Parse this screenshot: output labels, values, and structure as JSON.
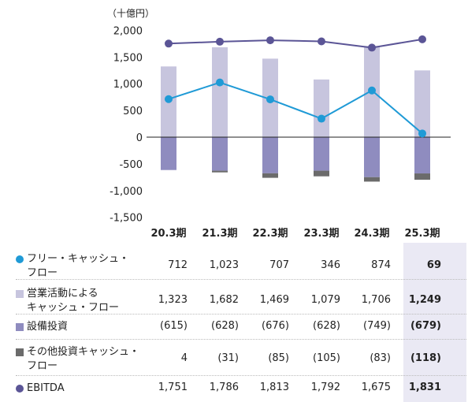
{
  "chart_data": {
    "type": "bar",
    "unit_label": "（十億円）",
    "categories": [
      "20.3期",
      "21.3期",
      "22.3期",
      "23.3期",
      "24.3期",
      "25.3期"
    ],
    "ylim": [
      -1500,
      2000
    ],
    "yticks": [
      "2,000",
      "1,500",
      "1,000",
      "500",
      "0",
      "-500",
      "-1,000",
      "-1,500"
    ],
    "ytick_values": [
      2000,
      1500,
      1000,
      500,
      0,
      -500,
      -1000,
      -1500
    ],
    "grid": false,
    "highlight_index": 5,
    "series": [
      {
        "name": "フリー・キャッシュ・\nフロー",
        "type": "line",
        "color": "#1f9ad6",
        "values": [
          712,
          1023,
          707,
          346,
          874,
          69
        ],
        "labels": [
          "712",
          "1,023",
          "707",
          "346",
          "874",
          "69"
        ]
      },
      {
        "name": "営業活動による\nキャッシュ・フロー",
        "type": "bar",
        "color": "#c7c5de",
        "values": [
          1323,
          1682,
          1469,
          1079,
          1706,
          1249
        ],
        "labels": [
          "1,323",
          "1,682",
          "1,469",
          "1,079",
          "1,706",
          "1,249"
        ]
      },
      {
        "name": "設備投資",
        "type": "bar",
        "color": "#8f8cbf",
        "values": [
          -615,
          -628,
          -676,
          -628,
          -749,
          -679
        ],
        "labels": [
          "(615)",
          "(628)",
          "(676)",
          "(628)",
          "(749)",
          "(679)"
        ]
      },
      {
        "name": "その他投資キャッシュ・\nフロー",
        "type": "bar",
        "color": "#6b6b6b",
        "values": [
          4,
          -31,
          -85,
          -105,
          -83,
          -118
        ],
        "labels": [
          "4",
          "(31)",
          "(85)",
          "(105)",
          "(83)",
          "(118)"
        ]
      },
      {
        "name": "EBITDA",
        "type": "line",
        "color": "#5b5596",
        "values": [
          1751,
          1786,
          1813,
          1792,
          1675,
          1831
        ],
        "labels": [
          "1,751",
          "1,786",
          "1,813",
          "1,792",
          "1,675",
          "1,831"
        ]
      }
    ]
  }
}
